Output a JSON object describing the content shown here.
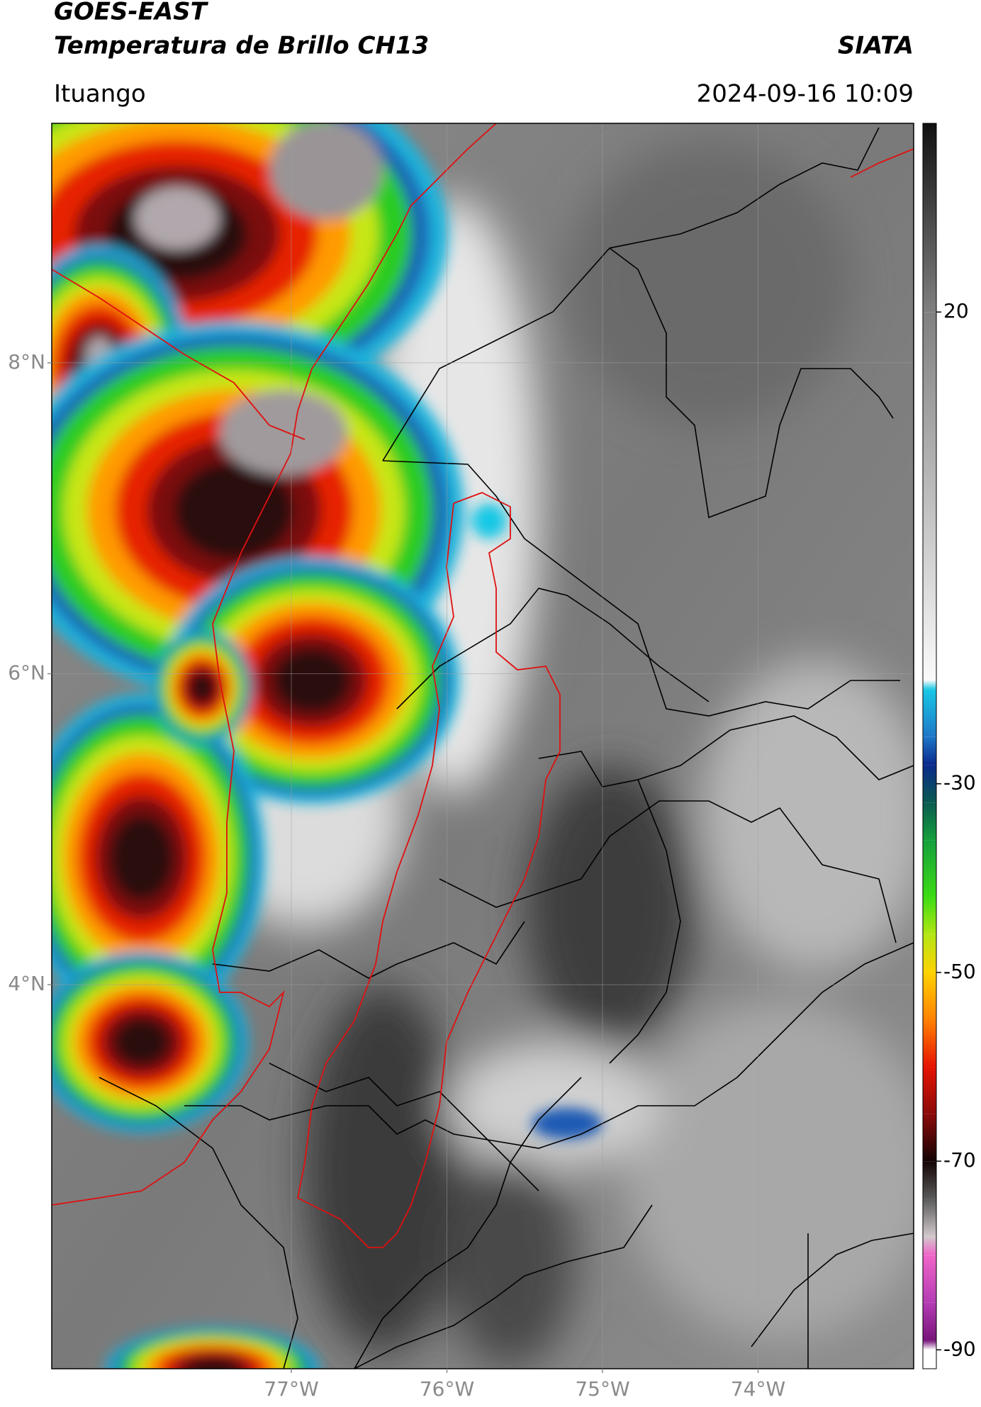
{
  "chart_data": {
    "type": "map",
    "title": "GOES-EAST",
    "subtitle": "Temperatura de Brillo CH13",
    "source": "SIATA",
    "location": "Ituango",
    "timestamp": "2024-09-16 10:09",
    "xlim": [
      -78.54,
      -73.0
    ],
    "ylim": [
      1.53,
      9.54
    ],
    "xticks": [
      {
        "value": -77,
        "label": "77°W"
      },
      {
        "value": -76,
        "label": "76°W"
      },
      {
        "value": -75,
        "label": "75°W"
      },
      {
        "value": -74,
        "label": "74°W"
      }
    ],
    "yticks": [
      {
        "value": 8,
        "label": "8°N"
      },
      {
        "value": 6,
        "label": "6°N"
      },
      {
        "value": 4,
        "label": "4°N"
      }
    ],
    "grid": true,
    "colorbar": {
      "clim": [
        -92,
        40
      ],
      "ticks": [
        20,
        -30,
        -50,
        -70,
        -90
      ],
      "stops": [
        {
          "value": 40,
          "color": "#111111"
        },
        {
          "value": 20,
          "color": "#808080"
        },
        {
          "value": -19,
          "color": "#fafafa"
        },
        {
          "value": -20,
          "color": "#19c8e6"
        },
        {
          "value": -25,
          "color": "#1e78c8"
        },
        {
          "value": -28,
          "color": "#0a2a8c"
        },
        {
          "value": -32,
          "color": "#0a5a50"
        },
        {
          "value": -36,
          "color": "#14a03c"
        },
        {
          "value": -42,
          "color": "#3cdc14"
        },
        {
          "value": -46,
          "color": "#b4e614"
        },
        {
          "value": -50,
          "color": "#ffd200"
        },
        {
          "value": -55,
          "color": "#ff8200"
        },
        {
          "value": -60,
          "color": "#e61400"
        },
        {
          "value": -65,
          "color": "#8c0a0a"
        },
        {
          "value": -70,
          "color": "#140404"
        },
        {
          "value": -74,
          "color": "#5a5a5a"
        },
        {
          "value": -78,
          "color": "#d2c8cc"
        },
        {
          "value": -80,
          "color": "#f064c8"
        },
        {
          "value": -85,
          "color": "#b43cb4"
        },
        {
          "value": -89,
          "color": "#78147a"
        },
        {
          "value": -90,
          "color": "#ffffff"
        }
      ]
    }
  }
}
